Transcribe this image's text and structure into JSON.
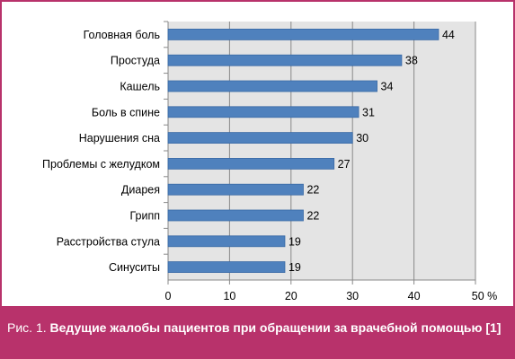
{
  "caption": {
    "prefix": "Рис. 1.",
    "text": "Ведущие жалобы пациентов при обращении за врачебной помощью [1]"
  },
  "colors": {
    "frame": "#b8326b",
    "plot_background": "#e4e4e4",
    "bar_fill": "#4f81bd",
    "bar_stroke": "#3a6aa5",
    "gridline": "#888888"
  },
  "chart_data": {
    "type": "bar",
    "orientation": "horizontal",
    "categories": [
      "Головная боль",
      "Простуда",
      "Кашель",
      "Боль в спине",
      "Нарушения сна",
      "Проблемы с желудком",
      "Диарея",
      "Грипп",
      "Расстройства стула",
      "Синуситы"
    ],
    "values": [
      44,
      38,
      34,
      31,
      30,
      27,
      22,
      22,
      19,
      19
    ],
    "xlim": [
      0,
      50
    ],
    "x_ticks": [
      "0",
      "10",
      "20",
      "30",
      "40",
      "50 %"
    ],
    "grid": true,
    "data_labels": true
  }
}
